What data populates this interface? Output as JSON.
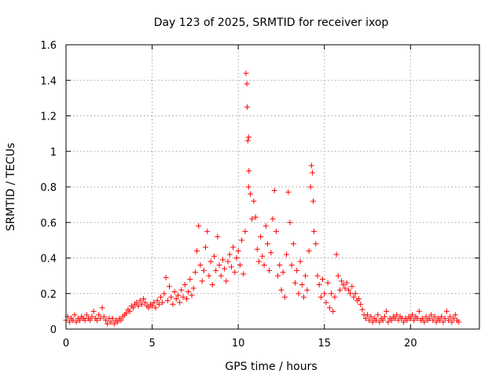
{
  "chart_data": {
    "type": "scatter",
    "title": "Day 123 of 2025, SRMTID for receiver ixop",
    "xlabel": "GPS time / hours",
    "ylabel": "SRMTID / TECUs",
    "xlim": [
      0,
      24
    ],
    "ylim": [
      0,
      1.6
    ],
    "xticks": [
      0,
      5,
      10,
      15,
      20
    ],
    "xtick_labels": [
      "0",
      "5",
      "10",
      "15",
      "20"
    ],
    "yticks": [
      0,
      0.2,
      0.4,
      0.6,
      0.8,
      1.0,
      1.2,
      1.4,
      1.6
    ],
    "ytick_labels": [
      "0",
      "0.2",
      "0.4",
      "0.6",
      "0.8",
      "1",
      "1.2",
      "1.4",
      "1.6"
    ],
    "grid": true,
    "marker": "plus",
    "color": "#ff0000",
    "series": [
      {
        "name": "SRMTID",
        "points": [
          [
            0.0,
            0.05
          ],
          [
            0.1,
            0.07
          ],
          [
            0.2,
            0.04
          ],
          [
            0.3,
            0.06
          ],
          [
            0.4,
            0.05
          ],
          [
            0.5,
            0.08
          ],
          [
            0.6,
            0.04
          ],
          [
            0.7,
            0.06
          ],
          [
            0.8,
            0.05
          ],
          [
            0.9,
            0.07
          ],
          [
            1.0,
            0.06
          ],
          [
            1.1,
            0.05
          ],
          [
            1.2,
            0.08
          ],
          [
            1.3,
            0.06
          ],
          [
            1.4,
            0.05
          ],
          [
            1.5,
            0.07
          ],
          [
            1.6,
            0.1
          ],
          [
            1.7,
            0.06
          ],
          [
            1.8,
            0.05
          ],
          [
            1.9,
            0.08
          ],
          [
            2.0,
            0.06
          ],
          [
            2.1,
            0.12
          ],
          [
            2.2,
            0.07
          ],
          [
            2.3,
            0.05
          ],
          [
            2.4,
            0.03
          ],
          [
            2.5,
            0.06
          ],
          [
            2.6,
            0.04
          ],
          [
            2.7,
            0.06
          ],
          [
            2.8,
            0.03
          ],
          [
            2.9,
            0.05
          ],
          [
            3.0,
            0.04
          ],
          [
            3.1,
            0.06
          ],
          [
            3.2,
            0.05
          ],
          [
            3.3,
            0.07
          ],
          [
            3.4,
            0.08
          ],
          [
            3.5,
            0.09
          ],
          [
            3.6,
            0.11
          ],
          [
            3.7,
            0.1
          ],
          [
            3.8,
            0.13
          ],
          [
            3.9,
            0.12
          ],
          [
            4.0,
            0.14
          ],
          [
            4.1,
            0.15
          ],
          [
            4.2,
            0.13
          ],
          [
            4.3,
            0.16
          ],
          [
            4.4,
            0.14
          ],
          [
            4.5,
            0.17
          ],
          [
            4.6,
            0.15
          ],
          [
            4.7,
            0.13
          ],
          [
            4.8,
            0.12
          ],
          [
            4.9,
            0.14
          ],
          [
            5.0,
            0.13
          ],
          [
            5.1,
            0.15
          ],
          [
            5.2,
            0.12
          ],
          [
            5.3,
            0.16
          ],
          [
            5.4,
            0.14
          ],
          [
            5.5,
            0.18
          ],
          [
            5.6,
            0.15
          ],
          [
            5.7,
            0.2
          ],
          [
            5.8,
            0.29
          ],
          [
            5.9,
            0.16
          ],
          [
            6.0,
            0.24
          ],
          [
            6.1,
            0.18
          ],
          [
            6.2,
            0.14
          ],
          [
            6.3,
            0.21
          ],
          [
            6.4,
            0.17
          ],
          [
            6.5,
            0.19
          ],
          [
            6.6,
            0.15
          ],
          [
            6.7,
            0.22
          ],
          [
            6.8,
            0.18
          ],
          [
            6.9,
            0.25
          ],
          [
            7.0,
            0.17
          ],
          [
            7.1,
            0.21
          ],
          [
            7.2,
            0.28
          ],
          [
            7.3,
            0.19
          ],
          [
            7.4,
            0.23
          ],
          [
            7.5,
            0.32
          ],
          [
            7.6,
            0.44
          ],
          [
            7.7,
            0.58
          ],
          [
            7.8,
            0.36
          ],
          [
            7.9,
            0.27
          ],
          [
            8.0,
            0.33
          ],
          [
            8.1,
            0.46
          ],
          [
            8.2,
            0.55
          ],
          [
            8.3,
            0.3
          ],
          [
            8.4,
            0.38
          ],
          [
            8.5,
            0.25
          ],
          [
            8.6,
            0.41
          ],
          [
            8.7,
            0.33
          ],
          [
            8.8,
            0.52
          ],
          [
            8.9,
            0.36
          ],
          [
            9.0,
            0.3
          ],
          [
            9.1,
            0.39
          ],
          [
            9.2,
            0.34
          ],
          [
            9.3,
            0.27
          ],
          [
            9.4,
            0.38
          ],
          [
            9.5,
            0.42
          ],
          [
            9.6,
            0.35
          ],
          [
            9.7,
            0.46
          ],
          [
            9.8,
            0.32
          ],
          [
            9.9,
            0.4
          ],
          [
            10.0,
            0.44
          ],
          [
            10.1,
            0.36
          ],
          [
            10.2,
            0.5
          ],
          [
            10.3,
            0.31
          ],
          [
            10.4,
            0.55
          ],
          [
            10.45,
            1.44
          ],
          [
            10.5,
            1.38
          ],
          [
            10.52,
            1.25
          ],
          [
            10.55,
            1.06
          ],
          [
            10.6,
            1.08
          ],
          [
            10.62,
            0.89
          ],
          [
            10.6,
            0.8
          ],
          [
            10.7,
            0.76
          ],
          [
            10.8,
            0.62
          ],
          [
            10.9,
            0.72
          ],
          [
            11.0,
            0.63
          ],
          [
            11.1,
            0.45
          ],
          [
            11.2,
            0.38
          ],
          [
            11.3,
            0.52
          ],
          [
            11.4,
            0.41
          ],
          [
            11.5,
            0.36
          ],
          [
            11.6,
            0.58
          ],
          [
            11.7,
            0.48
          ],
          [
            11.8,
            0.33
          ],
          [
            11.9,
            0.43
          ],
          [
            12.0,
            0.62
          ],
          [
            12.1,
            0.78
          ],
          [
            12.2,
            0.55
          ],
          [
            12.3,
            0.3
          ],
          [
            12.4,
            0.36
          ],
          [
            12.5,
            0.22
          ],
          [
            12.6,
            0.32
          ],
          [
            12.7,
            0.18
          ],
          [
            12.8,
            0.42
          ],
          [
            12.9,
            0.77
          ],
          [
            13.0,
            0.6
          ],
          [
            13.1,
            0.36
          ],
          [
            13.2,
            0.48
          ],
          [
            13.3,
            0.26
          ],
          [
            13.4,
            0.33
          ],
          [
            13.5,
            0.2
          ],
          [
            13.6,
            0.38
          ],
          [
            13.7,
            0.25
          ],
          [
            13.8,
            0.18
          ],
          [
            13.9,
            0.3
          ],
          [
            14.0,
            0.22
          ],
          [
            14.1,
            0.44
          ],
          [
            14.2,
            0.8
          ],
          [
            14.25,
            0.92
          ],
          [
            14.3,
            0.88
          ],
          [
            14.35,
            0.72
          ],
          [
            14.4,
            0.55
          ],
          [
            14.5,
            0.48
          ],
          [
            14.6,
            0.3
          ],
          [
            14.7,
            0.25
          ],
          [
            14.8,
            0.18
          ],
          [
            14.9,
            0.28
          ],
          [
            15.0,
            0.2
          ],
          [
            15.1,
            0.15
          ],
          [
            15.2,
            0.26
          ],
          [
            15.3,
            0.12
          ],
          [
            15.4,
            0.2
          ],
          [
            15.5,
            0.1
          ],
          [
            15.6,
            0.18
          ],
          [
            15.7,
            0.42
          ],
          [
            15.8,
            0.3
          ],
          [
            15.9,
            0.22
          ],
          [
            16.0,
            0.27
          ],
          [
            16.1,
            0.25
          ],
          [
            16.2,
            0.23
          ],
          [
            16.3,
            0.26
          ],
          [
            16.4,
            0.22
          ],
          [
            16.5,
            0.2
          ],
          [
            16.6,
            0.24
          ],
          [
            16.7,
            0.18
          ],
          [
            16.8,
            0.2
          ],
          [
            16.9,
            0.16
          ],
          [
            17.0,
            0.17
          ],
          [
            17.1,
            0.14
          ],
          [
            17.2,
            0.11
          ],
          [
            17.3,
            0.08
          ],
          [
            17.4,
            0.06
          ],
          [
            17.5,
            0.08
          ],
          [
            17.6,
            0.05
          ],
          [
            17.7,
            0.07
          ],
          [
            17.8,
            0.04
          ],
          [
            17.9,
            0.06
          ],
          [
            18.0,
            0.05
          ],
          [
            18.1,
            0.08
          ],
          [
            18.2,
            0.04
          ],
          [
            18.3,
            0.06
          ],
          [
            18.4,
            0.05
          ],
          [
            18.5,
            0.07
          ],
          [
            18.6,
            0.1
          ],
          [
            18.7,
            0.04
          ],
          [
            18.8,
            0.06
          ],
          [
            18.9,
            0.05
          ],
          [
            19.0,
            0.07
          ],
          [
            19.1,
            0.06
          ],
          [
            19.2,
            0.08
          ],
          [
            19.3,
            0.05
          ],
          [
            19.4,
            0.07
          ],
          [
            19.5,
            0.06
          ],
          [
            19.6,
            0.04
          ],
          [
            19.7,
            0.06
          ],
          [
            19.8,
            0.05
          ],
          [
            19.9,
            0.07
          ],
          [
            20.0,
            0.06
          ],
          [
            20.1,
            0.08
          ],
          [
            20.2,
            0.05
          ],
          [
            20.3,
            0.07
          ],
          [
            20.4,
            0.06
          ],
          [
            20.5,
            0.1
          ],
          [
            20.6,
            0.05
          ],
          [
            20.7,
            0.06
          ],
          [
            20.8,
            0.04
          ],
          [
            20.9,
            0.07
          ],
          [
            21.0,
            0.05
          ],
          [
            21.1,
            0.06
          ],
          [
            21.2,
            0.08
          ],
          [
            21.3,
            0.05
          ],
          [
            21.4,
            0.07
          ],
          [
            21.5,
            0.04
          ],
          [
            21.6,
            0.06
          ],
          [
            21.7,
            0.05
          ],
          [
            21.8,
            0.07
          ],
          [
            21.9,
            0.04
          ],
          [
            22.0,
            0.06
          ],
          [
            22.1,
            0.1
          ],
          [
            22.2,
            0.05
          ],
          [
            22.3,
            0.07
          ],
          [
            22.4,
            0.04
          ],
          [
            22.5,
            0.06
          ],
          [
            22.6,
            0.08
          ],
          [
            22.7,
            0.05
          ],
          [
            22.8,
            0.04
          ]
        ]
      }
    ]
  }
}
